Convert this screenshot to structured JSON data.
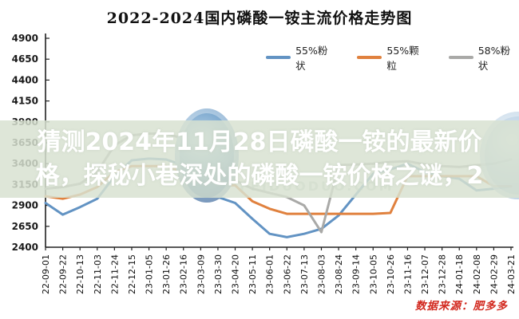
{
  "title": "2022-2024国内磷酸一铵主流价格走势图",
  "overlay": {
    "line1": "猜测2024年11月28日磷酸一铵的最新价",
    "line2": "格，探秘小巷深处的磷酸一铵价格之谜，2"
  },
  "watermark": {
    "text": "FEIDUODUO.COM"
  },
  "source_note": "数据来源：肥多多",
  "colors": {
    "series_blue": "#6293C3",
    "series_orange": "#E0813E",
    "series_gray": "#A9A9A7",
    "axis": "#222222",
    "overlay_band": "#D8E1D1",
    "source_red": "#D2281E"
  },
  "chart_data": {
    "type": "line",
    "title": "2022-2024国内磷酸一铵主流价格走势图",
    "ylim": [
      2400,
      4900
    ],
    "ytick_step": 250,
    "grid": false,
    "legend_position": "top",
    "categories": [
      "22-09-01",
      "22-09-22",
      "22-10-13",
      "22-11-03",
      "22-11-24",
      "22-12-15",
      "23-01-05",
      "23-01-26",
      "23-02-16",
      "23-03-09",
      "23-03-30",
      "23-04-20",
      "23-05-11",
      "23-06-01",
      "23-06-22",
      "23-07-13",
      "23-08-03",
      "23-08-24",
      "23-09-14",
      "23-10-05",
      "23-10-26",
      "23-11-16",
      "23-12-07",
      "23-12-28",
      "24-01-18",
      "24-02-08",
      "24-02-29",
      "24-03-21"
    ],
    "series": [
      {
        "name": "55%粉状",
        "color": "#6293C3",
        "values": [
          2930,
          2790,
          2880,
          2980,
          3250,
          3440,
          3460,
          3450,
          3380,
          3100,
          3000,
          2930,
          2740,
          2560,
          2520,
          2560,
          2620,
          2780,
          3030,
          3280,
          3330,
          3400,
          3300,
          3250,
          3220,
          3080,
          3100,
          3130
        ]
      },
      {
        "name": "55%颗粒",
        "color": "#E0813E",
        "values": [
          3010,
          2980,
          3030,
          3120,
          3300,
          3370,
          3370,
          3370,
          3300,
          3140,
          3140,
          3140,
          2950,
          2860,
          2800,
          2800,
          2800,
          2800,
          2800,
          2800,
          2810,
          3250,
          3250,
          3250,
          3250,
          3250,
          3130,
          3130
        ]
      },
      {
        "name": "58%粉状",
        "color": "#A9A9A7",
        "values": [
          3100,
          3120,
          3160,
          3300,
          3620,
          3740,
          3760,
          3760,
          3700,
          3500,
          3350,
          3200,
          3100,
          3050,
          3000,
          2900,
          2580,
          3380,
          3390,
          3400,
          3420,
          3430,
          3390,
          3370,
          3360,
          3380,
          3400,
          3450
        ]
      }
    ]
  }
}
